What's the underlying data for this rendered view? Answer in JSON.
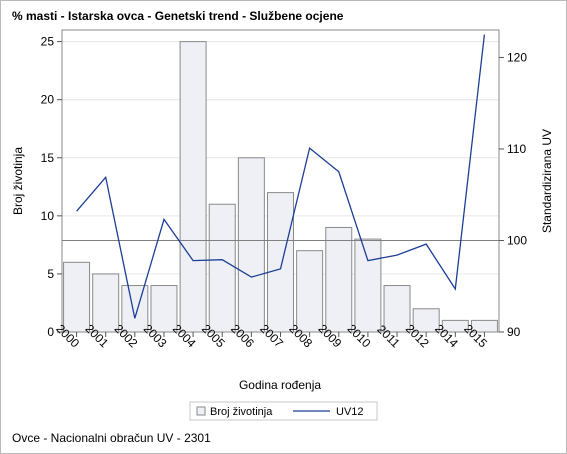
{
  "chart_data": {
    "type": "bar+line",
    "title": "% masti - Istarska ovca - Genetski trend - Službene ocjene",
    "footnote": "Ovce - Nacionalni obračun UV - 2301",
    "xlabel": "Godina rođenja",
    "ylabel_left": "Broj životinja",
    "ylabel_right": "Standardizirana UV",
    "categories": [
      "2000",
      "2001",
      "2002",
      "2003",
      "2004",
      "2005",
      "2006",
      "2007",
      "2008",
      "2009",
      "2010",
      "2011",
      "2012",
      "2014",
      "2015"
    ],
    "ylim_left": [
      0,
      26
    ],
    "yticks_left": [
      0,
      5,
      10,
      15,
      20,
      25
    ],
    "ylim_right": [
      90,
      123
    ],
    "yticks_right": [
      90,
      100,
      110,
      120
    ],
    "reference_line_right": 100,
    "series": [
      {
        "name": "Broj životinja",
        "type": "bar",
        "axis": "left",
        "values": [
          6,
          5,
          4,
          4,
          25,
          11,
          15,
          12,
          7,
          9,
          8,
          4,
          2,
          1,
          1
        ]
      },
      {
        "name": "UV12",
        "type": "line",
        "axis": "right",
        "values": [
          103.2,
          106.9,
          91.5,
          102.3,
          97.8,
          97.9,
          96.0,
          96.9,
          110.1,
          107.5,
          97.8,
          98.4,
          99.6,
          94.7,
          122.5
        ]
      }
    ],
    "legend_position": "bottom",
    "colors": {
      "bar_fill": "#eef0f6",
      "bar_stroke": "#8a8a8a",
      "line": "#1d3e96",
      "ref_line": "#808080",
      "grid": "#e6e6e6"
    }
  }
}
